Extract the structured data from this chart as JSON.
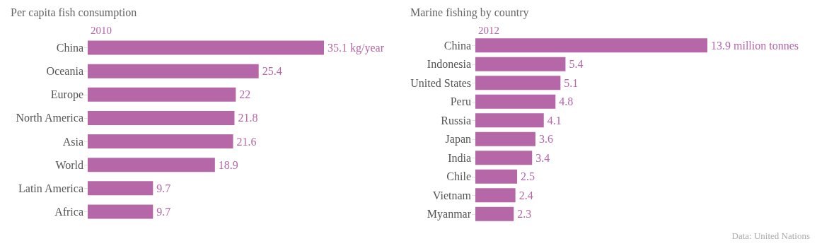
{
  "chart_data": [
    {
      "type": "bar",
      "orientation": "horizontal",
      "title": "Per capita fish consumption",
      "subtitle": "2010",
      "categories": [
        "China",
        "Oceania",
        "Europe",
        "North America",
        "Asia",
        "World",
        "Latin America",
        "Africa"
      ],
      "values": [
        35.1,
        25.4,
        22,
        21.8,
        21.6,
        18.9,
        9.7,
        9.7
      ],
      "color": "#b667a7",
      "value_labels": [
        "35.1 kg/year",
        "25.4",
        "22",
        "21.8",
        "21.6",
        "18.9",
        "9.7",
        "9.7"
      ]
    },
    {
      "type": "bar",
      "orientation": "horizontal",
      "title": "Marine fishing by country",
      "subtitle": "2012",
      "categories": [
        "China",
        "Indonesia",
        "United States",
        "Peru",
        "Russia",
        "Japan",
        "India",
        "Chile",
        "Vietnam",
        "Myanmar"
      ],
      "values": [
        13.9,
        5.4,
        5.1,
        4.8,
        4.1,
        3.6,
        3.4,
        2.5,
        2.4,
        2.3
      ],
      "color": "#b667a7",
      "value_labels": [
        "13.9 million tonnes",
        "5.4",
        "5.1",
        "4.8",
        "4.1",
        "3.6",
        "3.4",
        "2.5",
        "2.4",
        "2.3"
      ],
      "annotations": [
        "Data: United Nations"
      ]
    }
  ]
}
